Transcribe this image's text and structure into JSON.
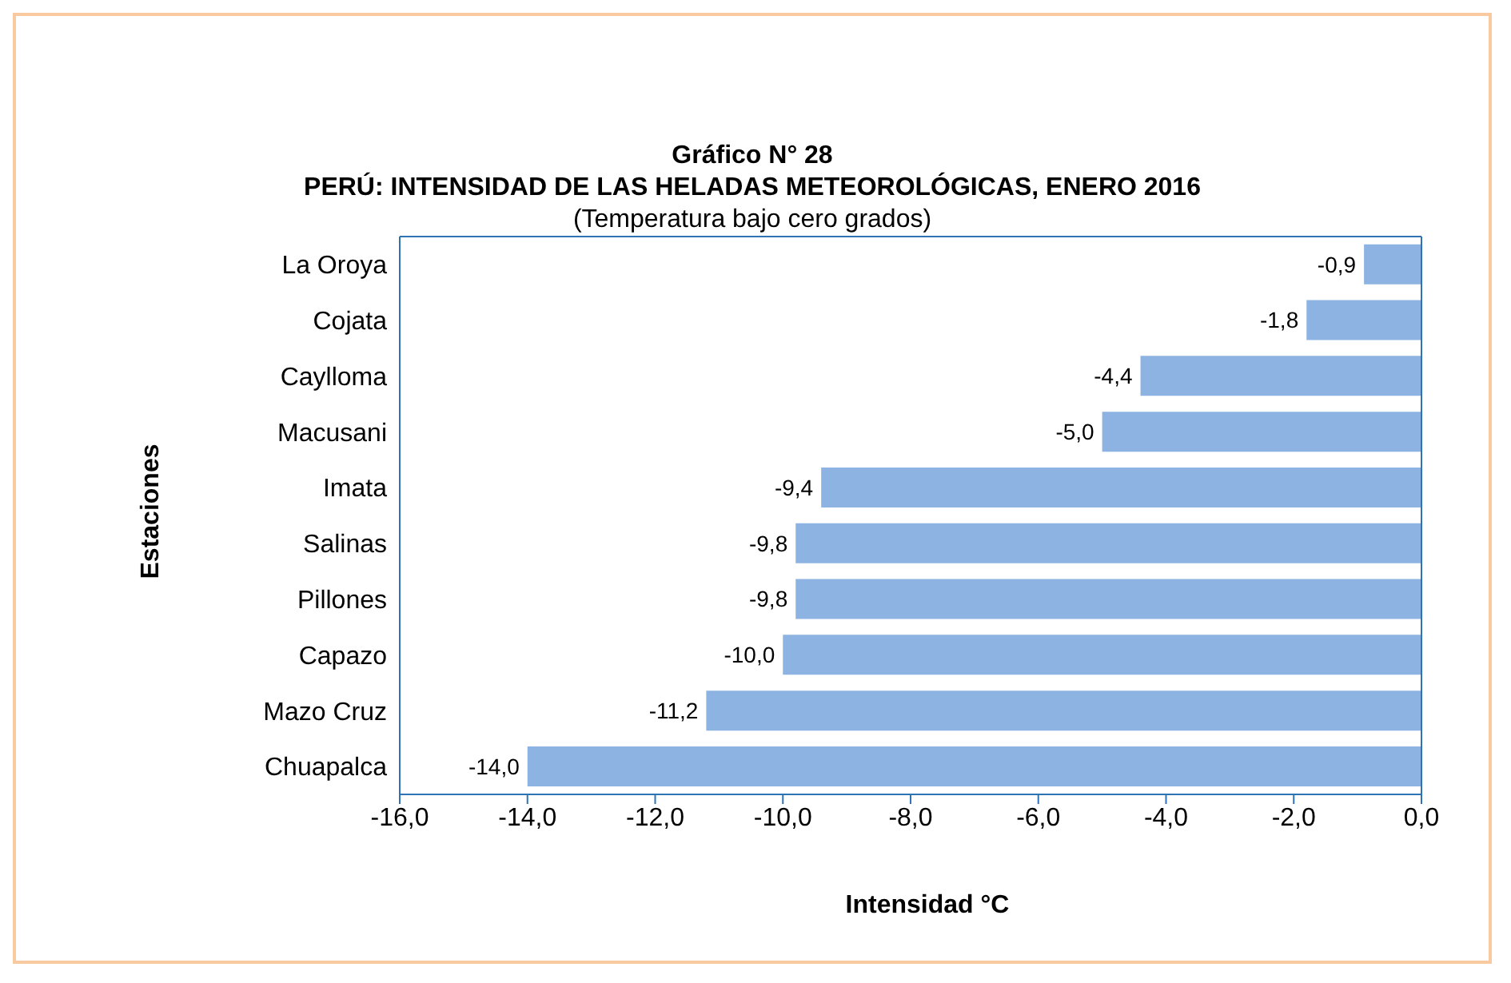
{
  "chart_data": {
    "type": "bar",
    "orientation": "horizontal",
    "title": "Gráfico N° 28",
    "subtitle": "PERÚ: INTENSIDAD DE LAS HELADAS METEOROLÓGICAS, ENERO 2016",
    "annotations": [
      "(Temperatura bajo cero grados)"
    ],
    "xlabel": "Intensidad °C",
    "ylabel": "Estaciones",
    "categories": [
      "La Oroya",
      "Cojata",
      "Caylloma",
      "Macusani",
      "Imata",
      "Salinas",
      "Pillones",
      "Capazo",
      "Mazo Cruz",
      "Chuapalca"
    ],
    "values": [
      -0.9,
      -1.8,
      -4.4,
      -5.0,
      -9.4,
      -9.8,
      -9.8,
      -10.0,
      -11.2,
      -14.0
    ],
    "value_labels": [
      "-0,9",
      "-1,8",
      "-4,4",
      "-5,0",
      "-9,4",
      "-9,8",
      "-9,8",
      "-10,0",
      "-11,2",
      "-14,0"
    ],
    "color": "#8db3e2",
    "xlim": [
      -16,
      0
    ],
    "xticks": [
      {
        "value": -16,
        "label": "-16,0"
      },
      {
        "value": -14,
        "label": "-14,0"
      },
      {
        "value": -12,
        "label": "-12,0"
      },
      {
        "value": -10,
        "label": "-10,0"
      },
      {
        "value": -8,
        "label": "-8,0"
      },
      {
        "value": -6,
        "label": "-6,0"
      },
      {
        "value": -4,
        "label": "-4,0"
      },
      {
        "value": -2,
        "label": "-2,0"
      },
      {
        "value": 0,
        "label": "0,0"
      }
    ],
    "grid": false
  }
}
